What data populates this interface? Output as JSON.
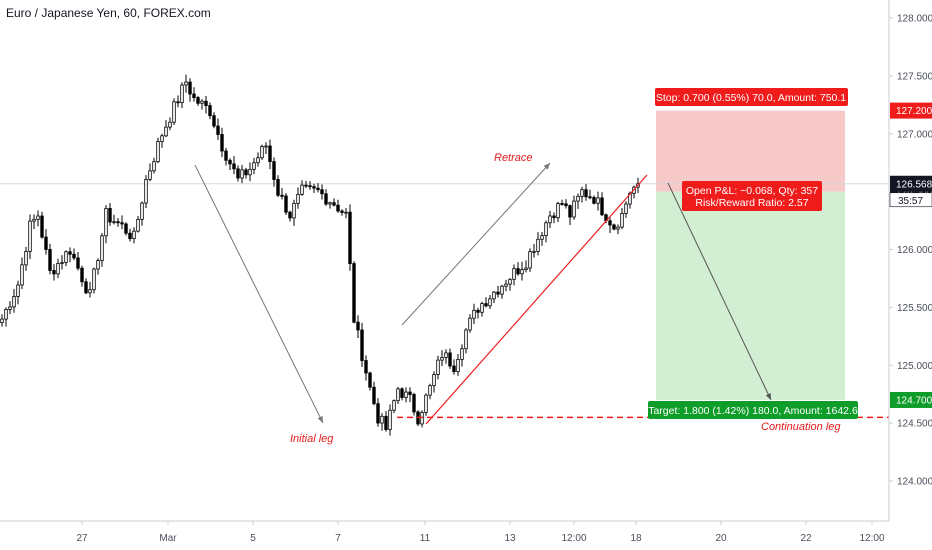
{
  "header": {
    "title": "Euro / Japanese Yen, 60, FOREX.com"
  },
  "chart_data": {
    "type": "candlestick",
    "symbol": "Euro / Japanese Yen",
    "interval": "60",
    "source": "FOREX.com",
    "ylim": [
      123.7,
      128.1
    ],
    "y_ticks": [
      "128.000",
      "127.500",
      "127.000",
      "126.500",
      "126.000",
      "125.500",
      "125.000",
      "124.500",
      "124.000"
    ],
    "x_ticks": [
      {
        "label": "27",
        "i": 19
      },
      {
        "label": "Mar",
        "i": 40
      },
      {
        "label": "5",
        "i": 61
      },
      {
        "label": "7",
        "i": 82
      },
      {
        "label": "11",
        "i": 103
      },
      {
        "label": "13",
        "i": 124
      },
      {
        "label": "12:00",
        "i": 140
      },
      {
        "label": "18",
        "i": 156
      },
      {
        "label": "20",
        "i": 177
      },
      {
        "label": "22",
        "i": 198
      },
      {
        "label": "12:00",
        "i": 214
      }
    ],
    "price_anchors": [
      [
        0,
        125.4
      ],
      [
        4,
        125.7
      ],
      [
        7,
        126.2
      ],
      [
        9,
        126.3
      ],
      [
        12,
        125.8
      ],
      [
        17,
        126.0
      ],
      [
        22,
        125.6
      ],
      [
        26,
        126.3
      ],
      [
        30,
        126.2
      ],
      [
        33,
        126.1
      ],
      [
        36,
        126.6
      ],
      [
        40,
        127.0
      ],
      [
        44,
        127.3
      ],
      [
        46,
        127.45
      ],
      [
        48,
        127.3
      ],
      [
        52,
        127.2
      ],
      [
        55,
        126.9
      ],
      [
        59,
        126.6
      ],
      [
        62,
        126.7
      ],
      [
        66,
        126.9
      ],
      [
        69,
        126.5
      ],
      [
        72,
        126.3
      ],
      [
        75,
        126.5
      ],
      [
        79,
        126.5
      ],
      [
        83,
        126.4
      ],
      [
        86,
        126.3
      ],
      [
        88,
        125.4
      ],
      [
        90,
        125.1
      ],
      [
        92,
        124.8
      ],
      [
        94,
        124.55
      ],
      [
        96,
        124.45
      ],
      [
        99,
        124.8
      ],
      [
        102,
        124.7
      ],
      [
        104,
        124.55
      ],
      [
        107,
        124.8
      ],
      [
        110,
        125.1
      ],
      [
        113,
        125.0
      ],
      [
        116,
        125.3
      ],
      [
        119,
        125.5
      ],
      [
        122,
        125.6
      ],
      [
        125,
        125.7
      ],
      [
        128,
        125.8
      ],
      [
        131,
        125.9
      ],
      [
        134,
        126.1
      ],
      [
        137,
        126.3
      ],
      [
        140,
        126.4
      ],
      [
        142,
        126.3
      ],
      [
        145,
        126.5
      ],
      [
        148,
        126.45
      ],
      [
        151,
        126.3
      ],
      [
        153,
        126.2
      ],
      [
        155,
        126.3
      ],
      [
        157,
        126.5
      ],
      [
        159,
        126.568
      ]
    ],
    "last_price": "126.568",
    "countdown": "35:57",
    "position": {
      "type": "short",
      "entry": 126.5,
      "stop": 127.2,
      "target": 124.7,
      "stop_label": "Stop: 0.700 (0.55%) 70.0, Amount: 750.1",
      "open_label_1": "Open P&L: −0.068, Qty: 357",
      "open_label_2": "Risk/Reward Ratio: 2.57",
      "target_label": "Target: 1.800 (1.42%) 180.0, Amount: 1642.6"
    },
    "price_tags": {
      "stop": "127.200",
      "entry": "126.500",
      "target": "124.700"
    },
    "annotations": {
      "initial_leg": "Initial leg",
      "retrace": "Retrace",
      "continuation_leg": "Continuation leg"
    },
    "colors": {
      "candle": "#000000",
      "stop_zone": "#f8c9c9",
      "target_zone": "#d3efd3",
      "red": "#f01b1b",
      "green": "#0f9d2a",
      "arrow": "#777777",
      "axis_text": "#4a4f5c"
    }
  }
}
